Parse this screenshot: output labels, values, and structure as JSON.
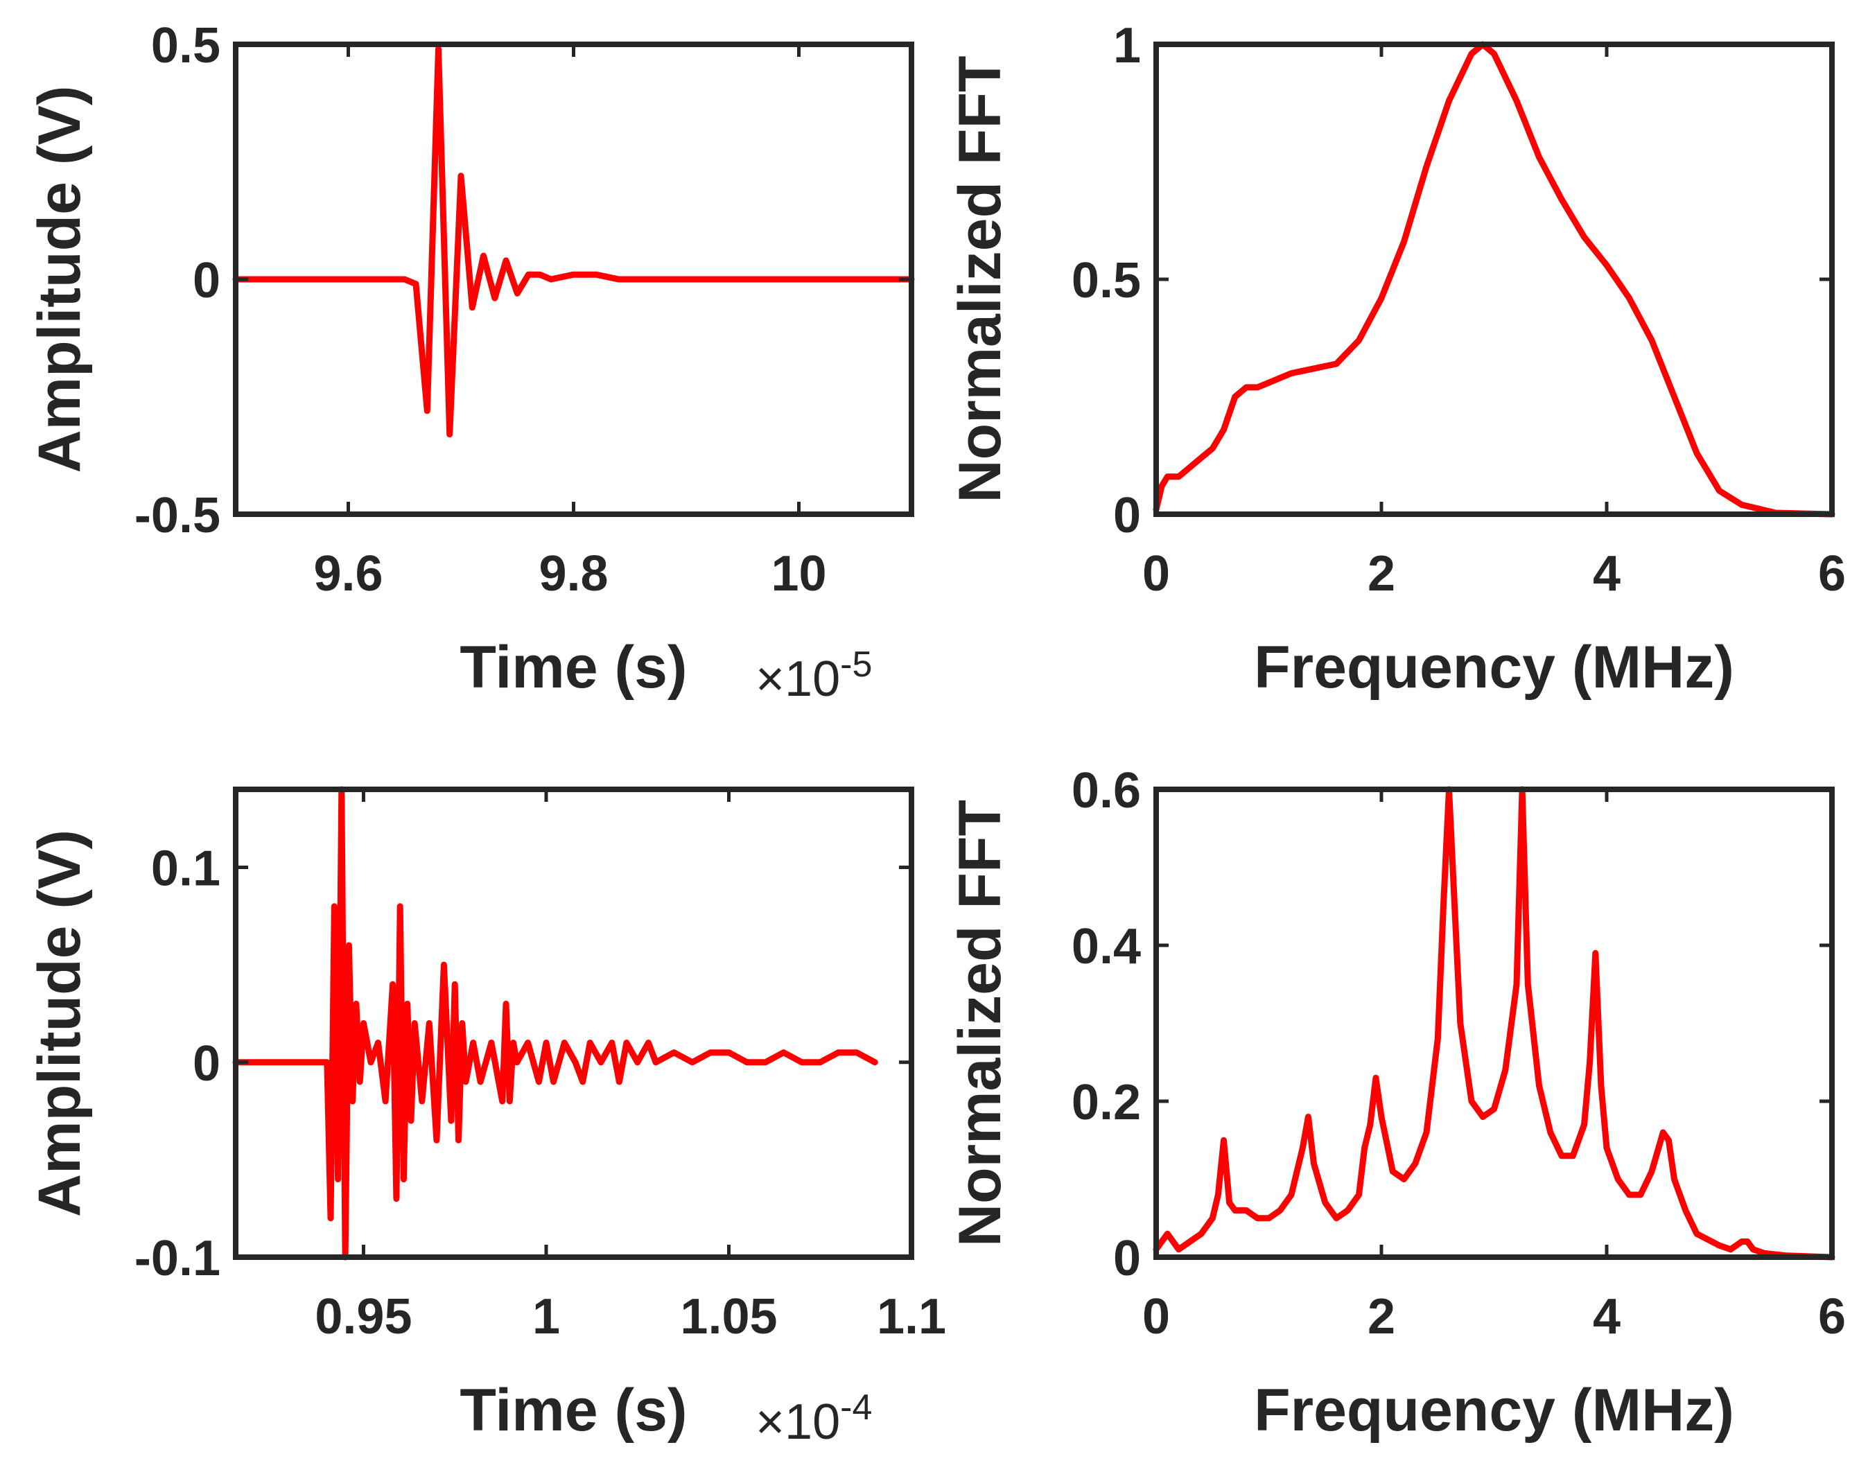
{
  "colors": {
    "series": "#ff0000",
    "axes": "#262626",
    "background": "#ffffff"
  },
  "chart_data": [
    {
      "id": "a",
      "type": "line",
      "xlabel": "Time (s)",
      "ylabel": "Amplitude (V)",
      "exponent_label": "×10",
      "exponent_power": "-5",
      "xlim": [
        9.5,
        10.1
      ],
      "ylim": [
        -0.5,
        0.5
      ],
      "xticks": [
        9.6,
        9.8,
        10
      ],
      "xtick_labels": [
        "9.6",
        "9.8",
        "10"
      ],
      "yticks": [
        -0.5,
        0,
        0.5
      ],
      "ytick_labels": [
        "-0.5",
        "0",
        "0.5"
      ],
      "series": [
        {
          "name": "Amplitude",
          "x": [
            9.5,
            9.6,
            9.65,
            9.66,
            9.67,
            9.68,
            9.69,
            9.7,
            9.71,
            9.72,
            9.73,
            9.74,
            9.75,
            9.76,
            9.77,
            9.78,
            9.8,
            9.82,
            9.84,
            9.86,
            10.1
          ],
          "y": [
            0,
            0,
            0,
            -0.01,
            -0.28,
            0.49,
            -0.33,
            0.22,
            -0.06,
            0.05,
            -0.04,
            0.04,
            -0.03,
            0.01,
            0.01,
            0,
            0.01,
            0.01,
            0,
            0,
            0
          ]
        }
      ]
    },
    {
      "id": "b",
      "type": "line",
      "xlabel": "Frequency (MHz)",
      "ylabel": "Normalized FFT",
      "xlim": [
        0,
        6
      ],
      "ylim": [
        0,
        1
      ],
      "xticks": [
        0,
        2,
        4,
        6
      ],
      "xtick_labels": [
        "0",
        "2",
        "4",
        "6"
      ],
      "yticks": [
        0,
        0.5,
        1
      ],
      "ytick_labels": [
        "0",
        "0.5",
        "1"
      ],
      "series": [
        {
          "name": "Normalized FFT",
          "x": [
            0,
            0.05,
            0.1,
            0.2,
            0.3,
            0.4,
            0.5,
            0.6,
            0.7,
            0.8,
            0.9,
            1.0,
            1.2,
            1.4,
            1.6,
            1.8,
            2.0,
            2.2,
            2.4,
            2.6,
            2.8,
            2.9,
            3.0,
            3.2,
            3.4,
            3.6,
            3.8,
            4.0,
            4.2,
            4.4,
            4.6,
            4.8,
            5.0,
            5.2,
            5.5,
            6.0
          ],
          "y": [
            0.01,
            0.06,
            0.08,
            0.08,
            0.1,
            0.12,
            0.14,
            0.18,
            0.25,
            0.27,
            0.27,
            0.28,
            0.3,
            0.31,
            0.32,
            0.37,
            0.46,
            0.58,
            0.74,
            0.88,
            0.98,
            1.0,
            0.98,
            0.88,
            0.76,
            0.67,
            0.59,
            0.53,
            0.46,
            0.37,
            0.25,
            0.13,
            0.05,
            0.02,
            0.003,
            0
          ]
        }
      ]
    },
    {
      "id": "c",
      "type": "line",
      "xlabel": "Time (s)",
      "ylabel": "Amplitude (V)",
      "exponent_label": "×10",
      "exponent_power": "-4",
      "xlim": [
        0.915,
        1.1
      ],
      "ylim": [
        -0.1,
        0.14
      ],
      "xticks": [
        0.95,
        1.0,
        1.05,
        1.1
      ],
      "xtick_labels": [
        "0.95",
        "1",
        "1.05",
        "1.1"
      ],
      "yticks": [
        -0.1,
        0,
        0.1
      ],
      "ytick_labels": [
        "-0.1",
        "0",
        "0.1"
      ],
      "series": [
        {
          "name": "Amplitude",
          "x": [
            0.915,
            0.94,
            0.941,
            0.942,
            0.943,
            0.944,
            0.945,
            0.946,
            0.947,
            0.948,
            0.949,
            0.95,
            0.952,
            0.954,
            0.956,
            0.958,
            0.959,
            0.96,
            0.961,
            0.962,
            0.963,
            0.964,
            0.966,
            0.968,
            0.97,
            0.972,
            0.974,
            0.975,
            0.976,
            0.977,
            0.978,
            0.98,
            0.982,
            0.985,
            0.988,
            0.989,
            0.99,
            0.991,
            0.992,
            0.995,
            0.998,
            1.0,
            1.002,
            1.005,
            1.008,
            1.01,
            1.012,
            1.015,
            1.018,
            1.02,
            1.022,
            1.025,
            1.028,
            1.03,
            1.035,
            1.04,
            1.045,
            1.05,
            1.055,
            1.06,
            1.065,
            1.07,
            1.075,
            1.08,
            1.085,
            1.09
          ],
          "y": [
            0,
            0,
            -0.08,
            0.08,
            -0.06,
            0.14,
            -0.1,
            0.06,
            -0.02,
            0.03,
            -0.01,
            0.02,
            0,
            0.01,
            -0.02,
            0.04,
            -0.07,
            0.08,
            -0.06,
            0.03,
            -0.03,
            0.02,
            -0.02,
            0.02,
            -0.04,
            0.05,
            -0.03,
            0.04,
            -0.04,
            0.02,
            -0.01,
            0.01,
            -0.01,
            0.01,
            -0.02,
            0.03,
            -0.02,
            0.01,
            0,
            0.01,
            -0.01,
            0.01,
            -0.01,
            0.01,
            0,
            -0.01,
            0.01,
            0,
            0.01,
            -0.01,
            0.01,
            0,
            0.01,
            0,
            0.005,
            0,
            0.005,
            0.005,
            0,
            0,
            0.005,
            0,
            0,
            0.005,
            0.005,
            0
          ]
        }
      ]
    },
    {
      "id": "d",
      "type": "line",
      "xlabel": "Frequency (MHz)",
      "ylabel": "Normalized FFT",
      "xlim": [
        0,
        6
      ],
      "ylim": [
        0,
        0.6
      ],
      "xticks": [
        0,
        2,
        4,
        6
      ],
      "xtick_labels": [
        "0",
        "2",
        "4",
        "6"
      ],
      "yticks": [
        0,
        0.2,
        0.4,
        0.6
      ],
      "ytick_labels": [
        "0",
        "0.2",
        "0.4",
        "0.6"
      ],
      "series": [
        {
          "name": "Normalized FFT",
          "x": [
            0,
            0.05,
            0.1,
            0.15,
            0.2,
            0.3,
            0.4,
            0.5,
            0.55,
            0.6,
            0.65,
            0.7,
            0.8,
            0.9,
            1.0,
            1.1,
            1.2,
            1.3,
            1.35,
            1.4,
            1.5,
            1.6,
            1.7,
            1.8,
            1.85,
            1.9,
            1.95,
            2.0,
            2.1,
            2.2,
            2.3,
            2.4,
            2.5,
            2.55,
            2.6,
            2.65,
            2.7,
            2.8,
            2.9,
            3.0,
            3.1,
            3.2,
            3.25,
            3.3,
            3.4,
            3.5,
            3.6,
            3.7,
            3.8,
            3.85,
            3.9,
            3.95,
            4.0,
            4.1,
            4.2,
            4.3,
            4.4,
            4.5,
            4.55,
            4.6,
            4.7,
            4.8,
            5.0,
            5.1,
            5.2,
            5.25,
            5.3,
            5.4,
            5.6,
            6.0
          ],
          "y": [
            0.01,
            0.02,
            0.03,
            0.02,
            0.01,
            0.02,
            0.03,
            0.05,
            0.08,
            0.15,
            0.07,
            0.06,
            0.06,
            0.05,
            0.05,
            0.06,
            0.08,
            0.14,
            0.18,
            0.12,
            0.07,
            0.05,
            0.06,
            0.08,
            0.14,
            0.17,
            0.23,
            0.18,
            0.11,
            0.1,
            0.12,
            0.16,
            0.28,
            0.45,
            0.6,
            0.45,
            0.3,
            0.2,
            0.18,
            0.19,
            0.24,
            0.35,
            0.6,
            0.35,
            0.22,
            0.16,
            0.13,
            0.13,
            0.17,
            0.25,
            0.39,
            0.22,
            0.14,
            0.1,
            0.08,
            0.08,
            0.11,
            0.16,
            0.15,
            0.1,
            0.06,
            0.03,
            0.015,
            0.01,
            0.02,
            0.02,
            0.01,
            0.005,
            0.002,
            0
          ]
        }
      ]
    }
  ]
}
